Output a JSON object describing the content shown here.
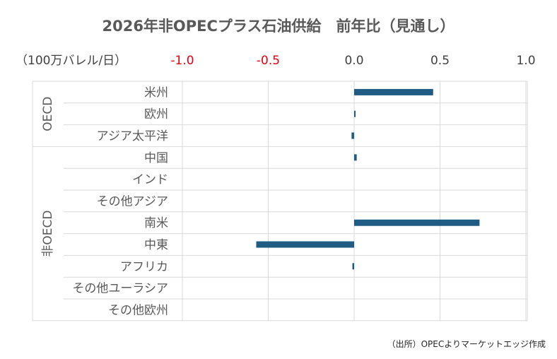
{
  "chart_data": {
    "type": "bar",
    "orientation": "horizontal",
    "title": "2026年非OPECプラス石油供給　前年比（見通し）",
    "unit_label": "（100万バレル/日）",
    "xlim": [
      -1.0,
      1.0
    ],
    "ticks": [
      {
        "value": -1.0,
        "label": "-1.0",
        "color": "#e60012"
      },
      {
        "value": -0.5,
        "label": "-0.5",
        "color": "#e60012"
      },
      {
        "value": 0.0,
        "label": "0.0",
        "color": "#404040"
      },
      {
        "value": 0.5,
        "label": "0.5",
        "color": "#404040"
      },
      {
        "value": 1.0,
        "label": "1.0",
        "color": "#404040"
      }
    ],
    "groups": [
      {
        "label": "OECD",
        "start": 0,
        "count": 3
      },
      {
        "label": "非OECD",
        "start": 3,
        "count": 8
      }
    ],
    "categories": [
      "米州",
      "欧州",
      "アジア太平洋",
      "中国",
      "インド",
      "その他アジア",
      "南米",
      "中東",
      "アフリカ",
      "その他ユーラシア",
      "その他欧州"
    ],
    "values": [
      0.46,
      0.005,
      -0.015,
      0.015,
      0.0,
      0.0,
      0.73,
      -0.57,
      -0.01,
      0.0,
      0.0
    ],
    "bar_color": "#1f5b82",
    "grid": true,
    "source": "（出所）OPECよりマーケットエッジ作成"
  }
}
